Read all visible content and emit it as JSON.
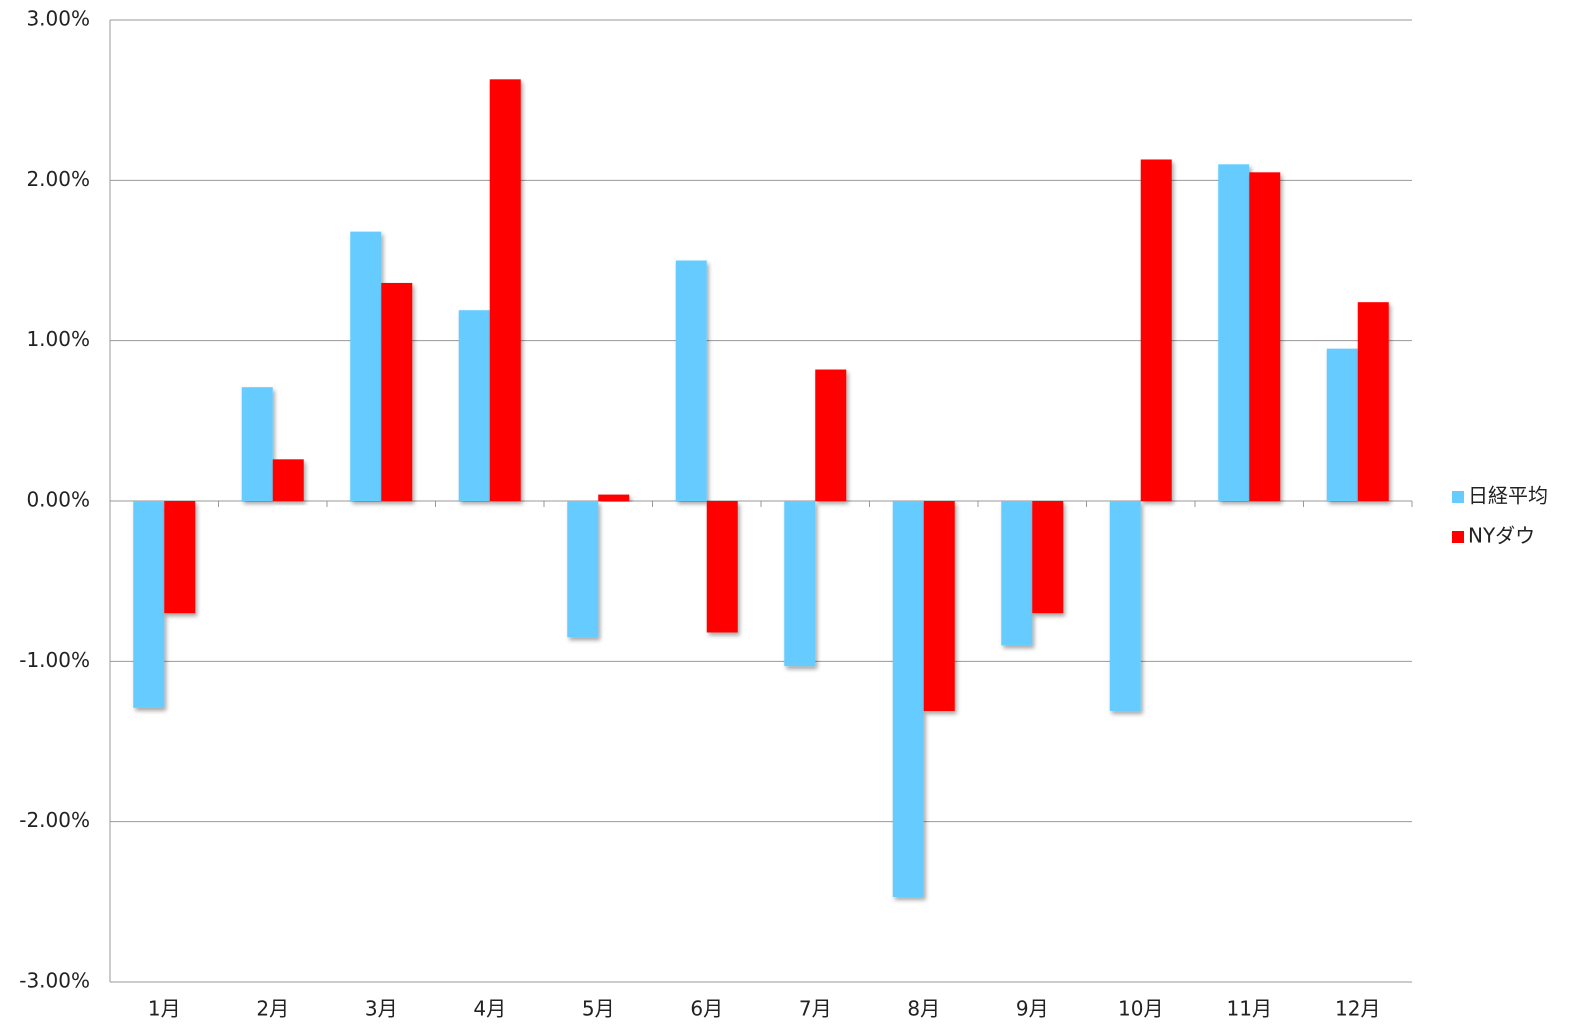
{
  "chart_data": {
    "type": "bar",
    "categories": [
      "1月",
      "2月",
      "3月",
      "4月",
      "5月",
      "6月",
      "7月",
      "8月",
      "9月",
      "10月",
      "11月",
      "12月"
    ],
    "series": [
      {
        "name": "日経平均",
        "color": "#66ccff",
        "values": [
          -1.29,
          0.71,
          1.68,
          1.19,
          -0.85,
          1.5,
          -1.03,
          -2.47,
          -0.9,
          -1.31,
          2.1,
          0.95
        ]
      },
      {
        "name": "NYダウ",
        "color": "#ff0000",
        "values": [
          -0.7,
          0.26,
          1.36,
          2.63,
          0.04,
          -0.82,
          0.82,
          -1.31,
          -0.7,
          2.13,
          2.05,
          1.24
        ]
      }
    ],
    "ylim": [
      -3,
      3
    ],
    "yticks": [
      {
        "value": -3,
        "label": "-3.00%"
      },
      {
        "value": -2,
        "label": "-2.00%"
      },
      {
        "value": -1,
        "label": "-1.00%"
      },
      {
        "value": 0,
        "label": "0.00%"
      },
      {
        "value": 1,
        "label": "1.00%"
      },
      {
        "value": 2,
        "label": "2.00%"
      },
      {
        "value": 3,
        "label": "3.00%"
      }
    ],
    "grid": true,
    "legend": "right"
  }
}
